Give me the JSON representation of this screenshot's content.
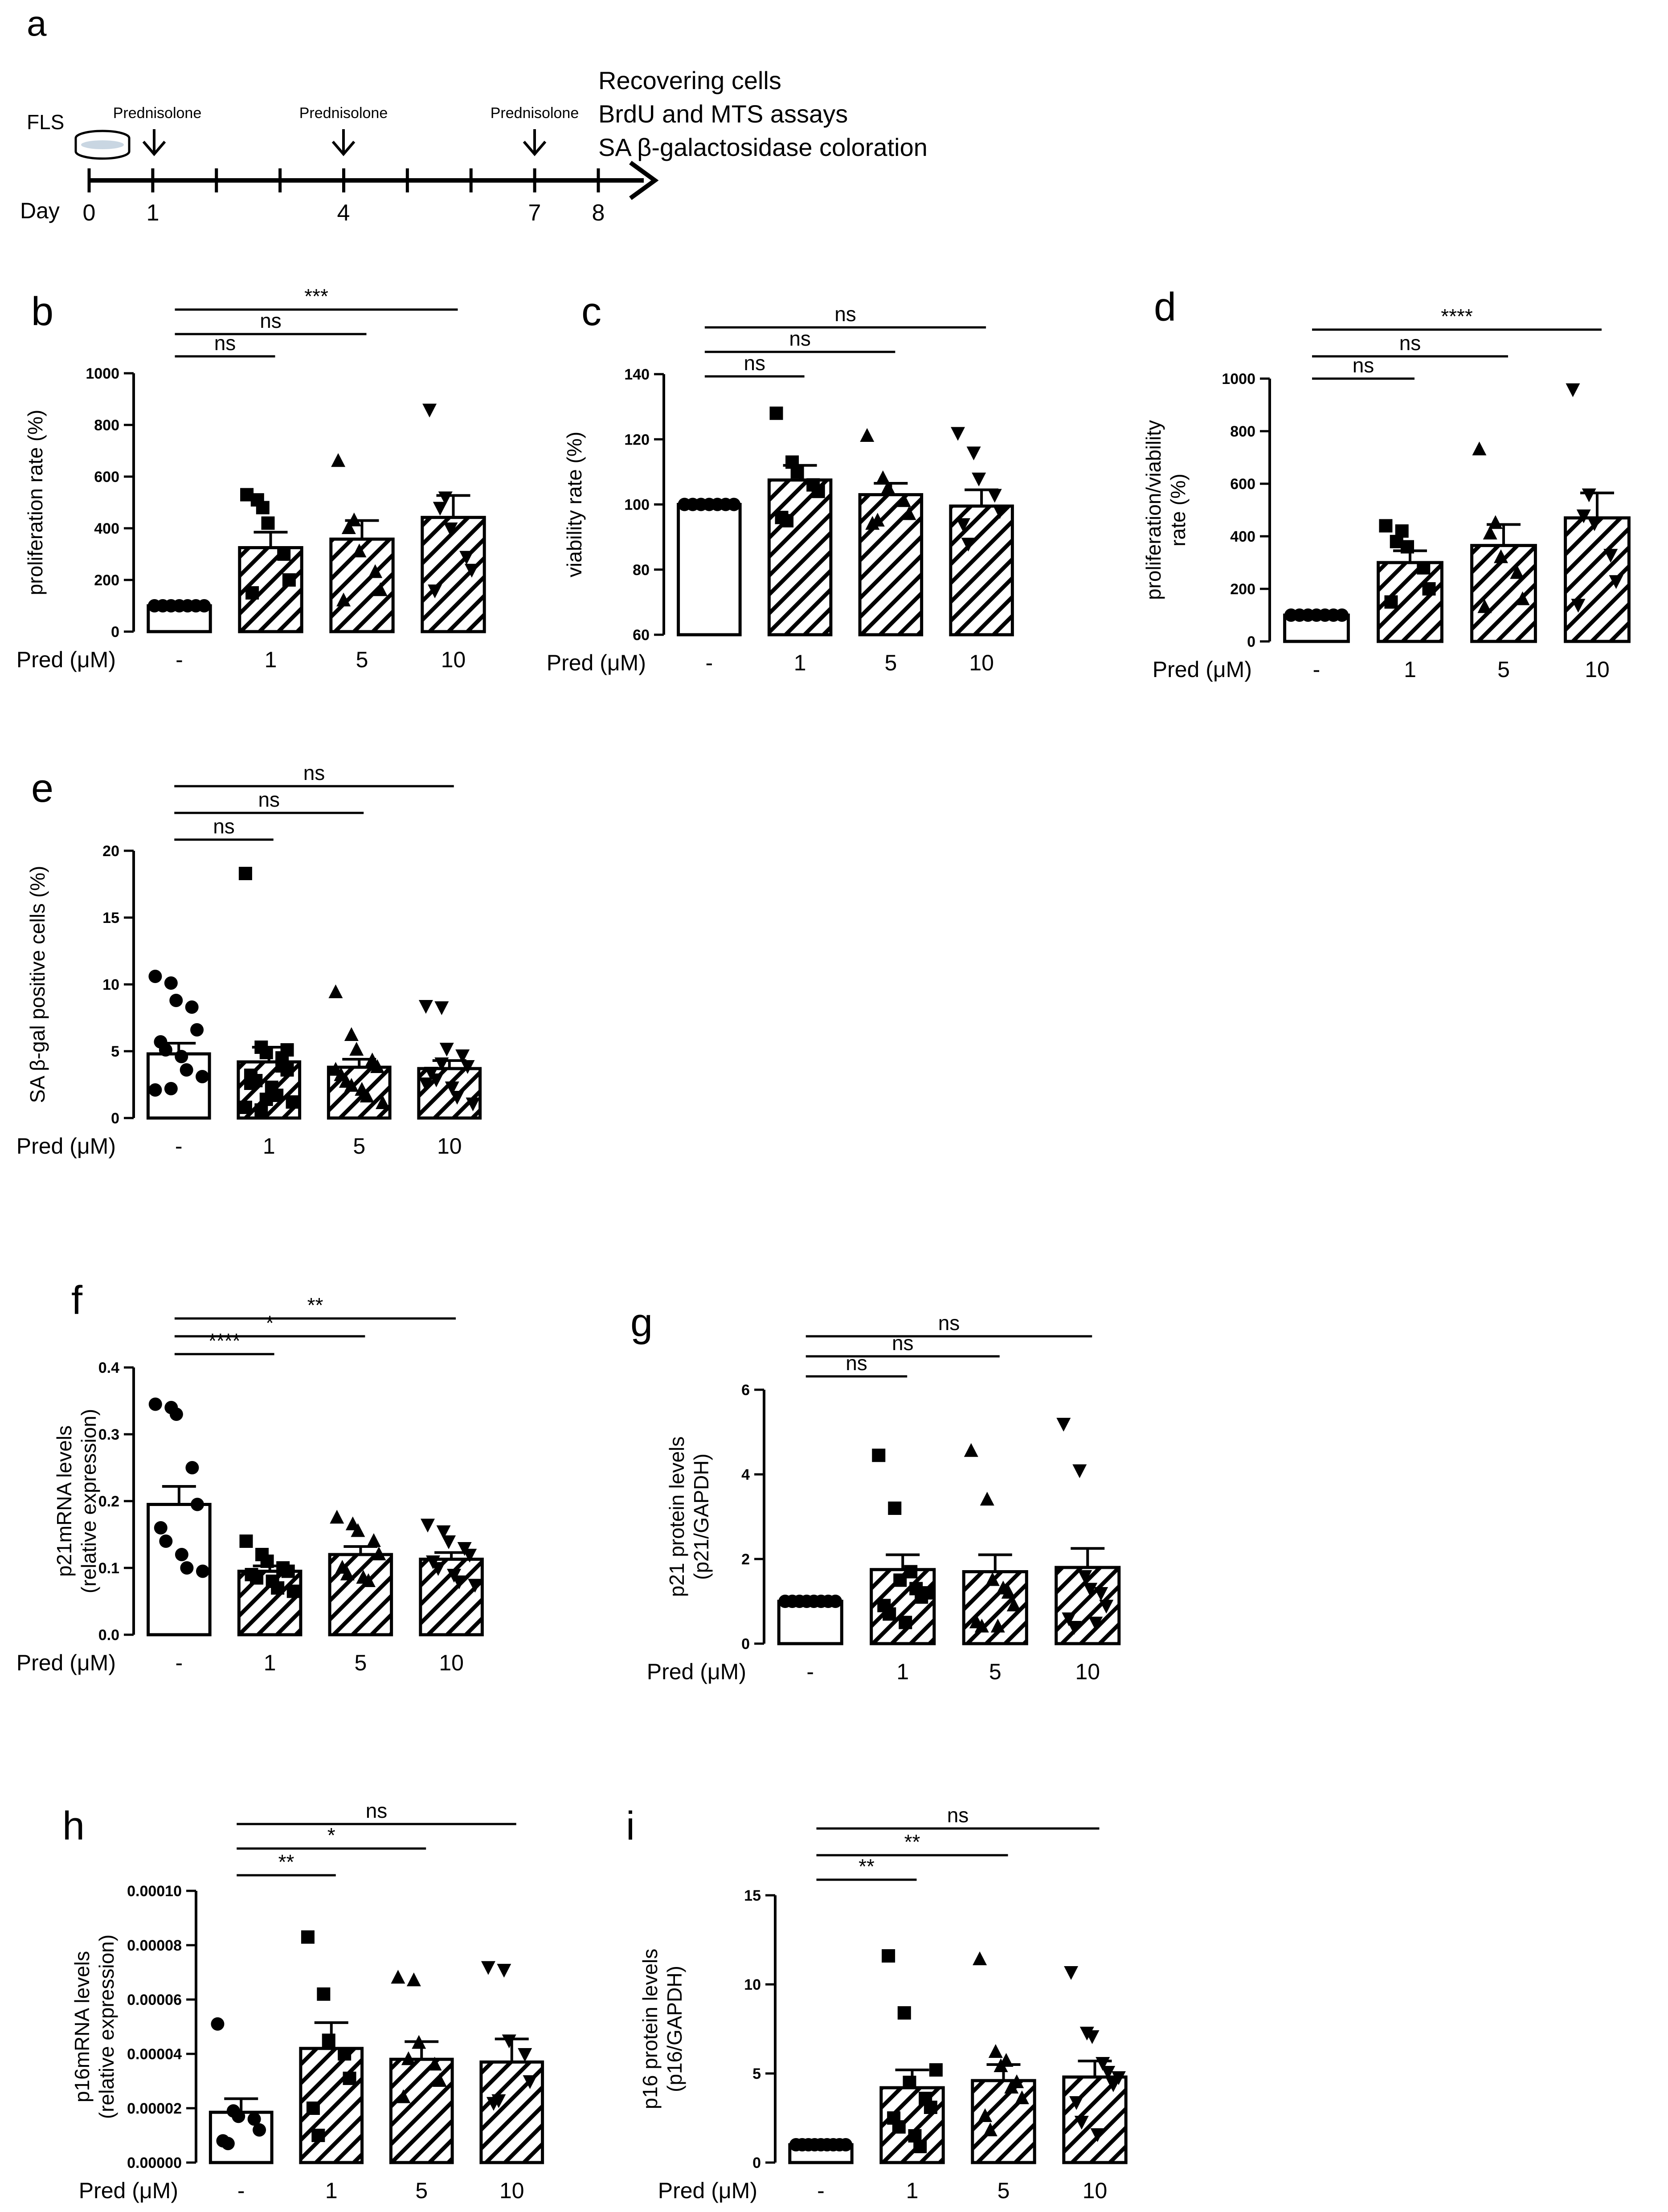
{
  "timeline": {
    "panel_letter": "a",
    "cell_label": "FLS",
    "day_label": "Day",
    "days": [
      "0",
      "1",
      "4",
      "7",
      "8"
    ],
    "treatment_label": "Prednisolone",
    "assay_lines": [
      "Recovering cells",
      "BrdU and MTS assays",
      "SA β-galactosidase coloration"
    ]
  },
  "chart_data": [
    {
      "panel": "b",
      "type": "bar",
      "ylabel": [
        "proliferation rate (%)"
      ],
      "xlabel": "Pred (μM)",
      "categories": [
        "-",
        "1",
        "5",
        "10"
      ],
      "ylim": [
        0,
        1000
      ],
      "yticks": [
        "0",
        "200",
        "400",
        "600",
        "800",
        "1000"
      ],
      "values": [
        100,
        325,
        358,
        442
      ],
      "sem": [
        0,
        60,
        72,
        85
      ],
      "points": [
        [
          100,
          100,
          100,
          100,
          100,
          100,
          100
        ],
        [
          530,
          480,
          420,
          300,
          200,
          150,
          510
        ],
        [
          660,
          430,
          310,
          230,
          160,
          120,
          400
        ],
        [
          860,
          520,
          400,
          290,
          240,
          160,
          480
        ]
      ],
      "markers": [
        "circle",
        "square",
        "triangle-up",
        "triangle-down"
      ],
      "comparisons": [
        {
          "to": "1",
          "label": "ns"
        },
        {
          "to": "5",
          "label": "ns"
        },
        {
          "to": "10",
          "label": "***"
        }
      ]
    },
    {
      "panel": "c",
      "type": "bar",
      "ylabel": [
        "viability rate (%)"
      ],
      "xlabel": "Pred (μM)",
      "categories": [
        "-",
        "1",
        "5",
        "10"
      ],
      "ylim": [
        60,
        140
      ],
      "yticks": [
        "60",
        "80",
        "100",
        "120",
        "140"
      ],
      "values": [
        100,
        107.5,
        103,
        99.5
      ],
      "sem": [
        0,
        4.5,
        3.5,
        5
      ],
      "points": [
        [
          100,
          100,
          100,
          100,
          100,
          100,
          100
        ],
        [
          128,
          113,
          110,
          106,
          104,
          96,
          95
        ],
        [
          121,
          108,
          105,
          101,
          97,
          94,
          95
        ],
        [
          122,
          116,
          108,
          103,
          98,
          94,
          88
        ]
      ],
      "markers": [
        "circle",
        "square",
        "triangle-up",
        "triangle-down"
      ],
      "comparisons": [
        {
          "to": "1",
          "label": "ns"
        },
        {
          "to": "5",
          "label": "ns"
        },
        {
          "to": "10",
          "label": "ns"
        }
      ]
    },
    {
      "panel": "d",
      "type": "bar",
      "ylabel": [
        "proliferation/viability",
        "rate (%)"
      ],
      "xlabel": "Pred (μM)",
      "categories": [
        "-",
        "1",
        "5",
        "10"
      ],
      "ylim": [
        0,
        1000
      ],
      "yticks": [
        "0",
        "200",
        "400",
        "600",
        "800",
        "1000"
      ],
      "values": [
        100,
        300,
        365,
        470
      ],
      "sem": [
        0,
        45,
        80,
        95
      ],
      "points": [
        [
          100,
          100,
          100,
          100,
          100,
          100,
          100
        ],
        [
          440,
          420,
          360,
          280,
          200,
          150,
          380
        ],
        [
          730,
          450,
          320,
          260,
          160,
          130,
          410
        ],
        [
          960,
          560,
          450,
          330,
          230,
          140,
          480
        ]
      ],
      "markers": [
        "circle",
        "square",
        "triangle-up",
        "triangle-down"
      ],
      "comparisons": [
        {
          "to": "1",
          "label": "ns"
        },
        {
          "to": "5",
          "label": "ns"
        },
        {
          "to": "10",
          "label": "****"
        }
      ]
    },
    {
      "panel": "e",
      "type": "bar",
      "ylabel": [
        "SA β-gal positive cells (%)"
      ],
      "xlabel": "Pred (μM)",
      "categories": [
        "-",
        "1",
        "5",
        "10"
      ],
      "ylim": [
        0,
        20
      ],
      "yticks": [
        "0",
        "5",
        "10",
        "15",
        "20"
      ],
      "values": [
        4.8,
        4.2,
        3.8,
        3.7
      ],
      "sem": [
        0.8,
        1.1,
        0.6,
        0.6
      ],
      "points": [
        [
          10.6,
          10.1,
          8.8,
          8.3,
          6.6,
          5.7,
          5.1,
          4.6,
          3.6,
          3.1,
          2.1,
          2.2
        ],
        [
          18.3,
          5.3,
          4.9,
          4.5,
          3.6,
          3.2,
          2.8,
          2.3,
          1.7,
          1.2,
          0.8,
          0.6,
          1.4,
          3.9,
          5.1,
          2.6
        ],
        [
          9.4,
          6.2,
          5.1,
          4.3,
          3.8,
          3.2,
          2.7,
          2.1,
          1.6,
          1.1,
          3.6,
          2.4
        ],
        [
          8.4,
          8.3,
          5.2,
          4.7,
          3.9,
          3.4,
          2.9,
          2.3,
          1.6,
          1.1,
          2.6,
          4.1
        ]
      ],
      "markers": [
        "circle",
        "square",
        "triangle-up",
        "triangle-down"
      ],
      "comparisons": [
        {
          "to": "1",
          "label": "ns"
        },
        {
          "to": "5",
          "label": "ns"
        },
        {
          "to": "10",
          "label": "ns"
        }
      ]
    },
    {
      "panel": "f",
      "type": "bar",
      "ylabel": [
        "p21mRNA levels",
        "(relative expression)"
      ],
      "xlabel": "Pred (μM)",
      "categories": [
        "-",
        "1",
        "5",
        "10"
      ],
      "ylim": [
        0,
        0.4
      ],
      "yticks": [
        "0.0",
        "0.1",
        "0.2",
        "0.3",
        "0.4"
      ],
      "values": [
        0.195,
        0.095,
        0.12,
        0.113
      ],
      "sem": [
        0.027,
        0.008,
        0.012,
        0.01
      ],
      "points": [
        [
          0.345,
          0.34,
          0.33,
          0.25,
          0.195,
          0.16,
          0.14,
          0.12,
          0.1,
          0.095
        ],
        [
          0.14,
          0.12,
          0.11,
          0.1,
          0.095,
          0.09,
          0.085,
          0.08,
          0.07,
          0.065
        ],
        [
          0.175,
          0.165,
          0.155,
          0.14,
          0.12,
          0.1,
          0.09,
          0.085,
          0.08
        ],
        [
          0.165,
          0.155,
          0.14,
          0.13,
          0.12,
          0.11,
          0.1,
          0.09,
          0.08,
          0.075
        ]
      ],
      "markers": [
        "circle",
        "square",
        "triangle-up",
        "triangle-down"
      ],
      "comparisons": [
        {
          "to": "1",
          "label": "****"
        },
        {
          "to": "5",
          "label": "*"
        },
        {
          "to": "10",
          "label": "**"
        }
      ]
    },
    {
      "panel": "g",
      "type": "bar",
      "ylabel": [
        "p21 protein levels",
        "(p21/GAPDH)"
      ],
      "xlabel": "Pred (μM)",
      "categories": [
        "-",
        "1",
        "5",
        "10"
      ],
      "ylim": [
        0,
        6
      ],
      "yticks": [
        "0",
        "2",
        "4",
        "6"
      ],
      "values": [
        1,
        1.75,
        1.7,
        1.8
      ],
      "sem": [
        0,
        0.35,
        0.4,
        0.45
      ],
      "points": [
        [
          1,
          1,
          1,
          1,
          1,
          1,
          1,
          1
        ],
        [
          4.45,
          3.2,
          1.5,
          1.3,
          1.1,
          0.9,
          0.7,
          0.5,
          1.7,
          1.2
        ],
        [
          4.55,
          3.4,
          1.5,
          1.2,
          0.9,
          0.5,
          0.4,
          0.4,
          1.3
        ],
        [
          5.2,
          4.1,
          1.6,
          1.2,
          0.9,
          0.6,
          0.4,
          1.3,
          0.5
        ]
      ],
      "markers": [
        "circle",
        "square",
        "triangle-up",
        "triangle-down"
      ],
      "comparisons": [
        {
          "to": "1",
          "label": "ns"
        },
        {
          "to": "5",
          "label": "ns"
        },
        {
          "to": "10",
          "label": "ns"
        }
      ]
    },
    {
      "panel": "h",
      "type": "bar",
      "ylabel": [
        "p16mRNA levels",
        "(relative expression)"
      ],
      "xlabel": "Pred (μM)",
      "categories": [
        "-",
        "1",
        "5",
        "10"
      ],
      "ylim": [
        0,
        0.0001
      ],
      "yticks": [
        "0.00000",
        "0.00002",
        "0.00004",
        "0.00006",
        "0.00008",
        "0.00010"
      ],
      "values": [
        1.85e-05,
        4.2e-05,
        3.8e-05,
        3.7e-05
      ],
      "sem": [
        5e-06,
        9.5e-06,
        6.5e-06,
        8.5e-06
      ],
      "points": [
        [
          5.1e-05,
          1.9e-05,
          1.7e-05,
          1.6e-05,
          1.2e-05,
          8e-06,
          7e-06
        ],
        [
          8.3e-05,
          6.2e-05,
          4.5e-05,
          4e-05,
          3.1e-05,
          2e-05,
          1e-05
        ],
        [
          6.8e-05,
          6.7e-05,
          4.4e-05,
          3.6e-05,
          3e-05,
          2.4e-05,
          3.8e-05
        ],
        [
          7.2e-05,
          7.1e-05,
          4.5e-05,
          4e-05,
          3e-05,
          2.2e-05,
          2.3e-05
        ]
      ],
      "markers": [
        "circle",
        "square",
        "triangle-up",
        "triangle-down"
      ],
      "comparisons": [
        {
          "to": "1",
          "label": "**"
        },
        {
          "to": "5",
          "label": "*"
        },
        {
          "to": "10",
          "label": "ns"
        }
      ]
    },
    {
      "panel": "i",
      "type": "bar",
      "ylabel": [
        "p16 protein levels",
        "(p16/GAPDH)"
      ],
      "xlabel": "Pred (μM)",
      "categories": [
        "-",
        "1",
        "5",
        "10"
      ],
      "ylim": [
        0,
        15
      ],
      "yticks": [
        "0",
        "5",
        "10",
        "15"
      ],
      "values": [
        1,
        4.2,
        4.6,
        4.8
      ],
      "sem": [
        0,
        1,
        0.9,
        0.9
      ],
      "points": [
        [
          1,
          1,
          1,
          1,
          1,
          1,
          1,
          1,
          1
        ],
        [
          11.6,
          8.4,
          4.5,
          3.6,
          3.1,
          2.5,
          2,
          1.5,
          0.9,
          5.2
        ],
        [
          11.4,
          6.2,
          5.4,
          4.5,
          3.6,
          2.6,
          1.8,
          5.7,
          4.2
        ],
        [
          10.7,
          7.3,
          7.1,
          5.1,
          4.4,
          3.4,
          2.3,
          1.6,
          5.6,
          4.8
        ]
      ],
      "markers": [
        "circle",
        "square",
        "triangle-up",
        "triangle-down"
      ],
      "comparisons": [
        {
          "to": "1",
          "label": "**"
        },
        {
          "to": "5",
          "label": "**"
        },
        {
          "to": "10",
          "label": "ns"
        }
      ]
    }
  ]
}
